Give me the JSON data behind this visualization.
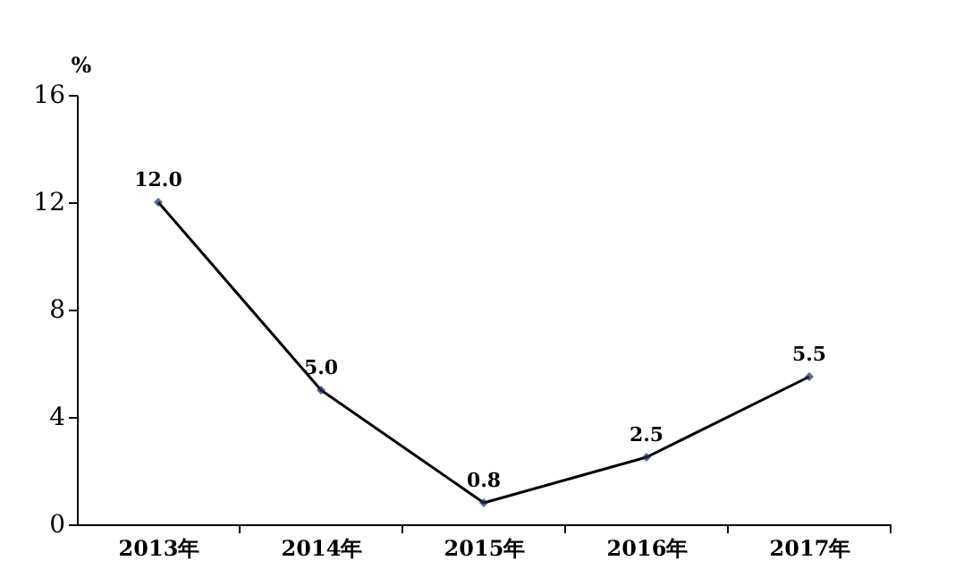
{
  "chart_data": {
    "type": "line",
    "ylabel": "%",
    "categories": [
      "2013年",
      "2014年",
      "2015年",
      "2016年",
      "2017年"
    ],
    "series": [
      {
        "color": "#000000",
        "values": [
          12.0,
          5.0,
          0.8,
          2.5,
          5.5
        ],
        "value_labels": [
          "12.0",
          "5.0",
          "0.8",
          "2.5",
          "5.5"
        ]
      }
    ],
    "ylim": [
      0,
      16
    ],
    "yticks": [
      0,
      4,
      8,
      12,
      16
    ],
    "grid": false,
    "marker": "diamond",
    "line_style": "solid"
  }
}
